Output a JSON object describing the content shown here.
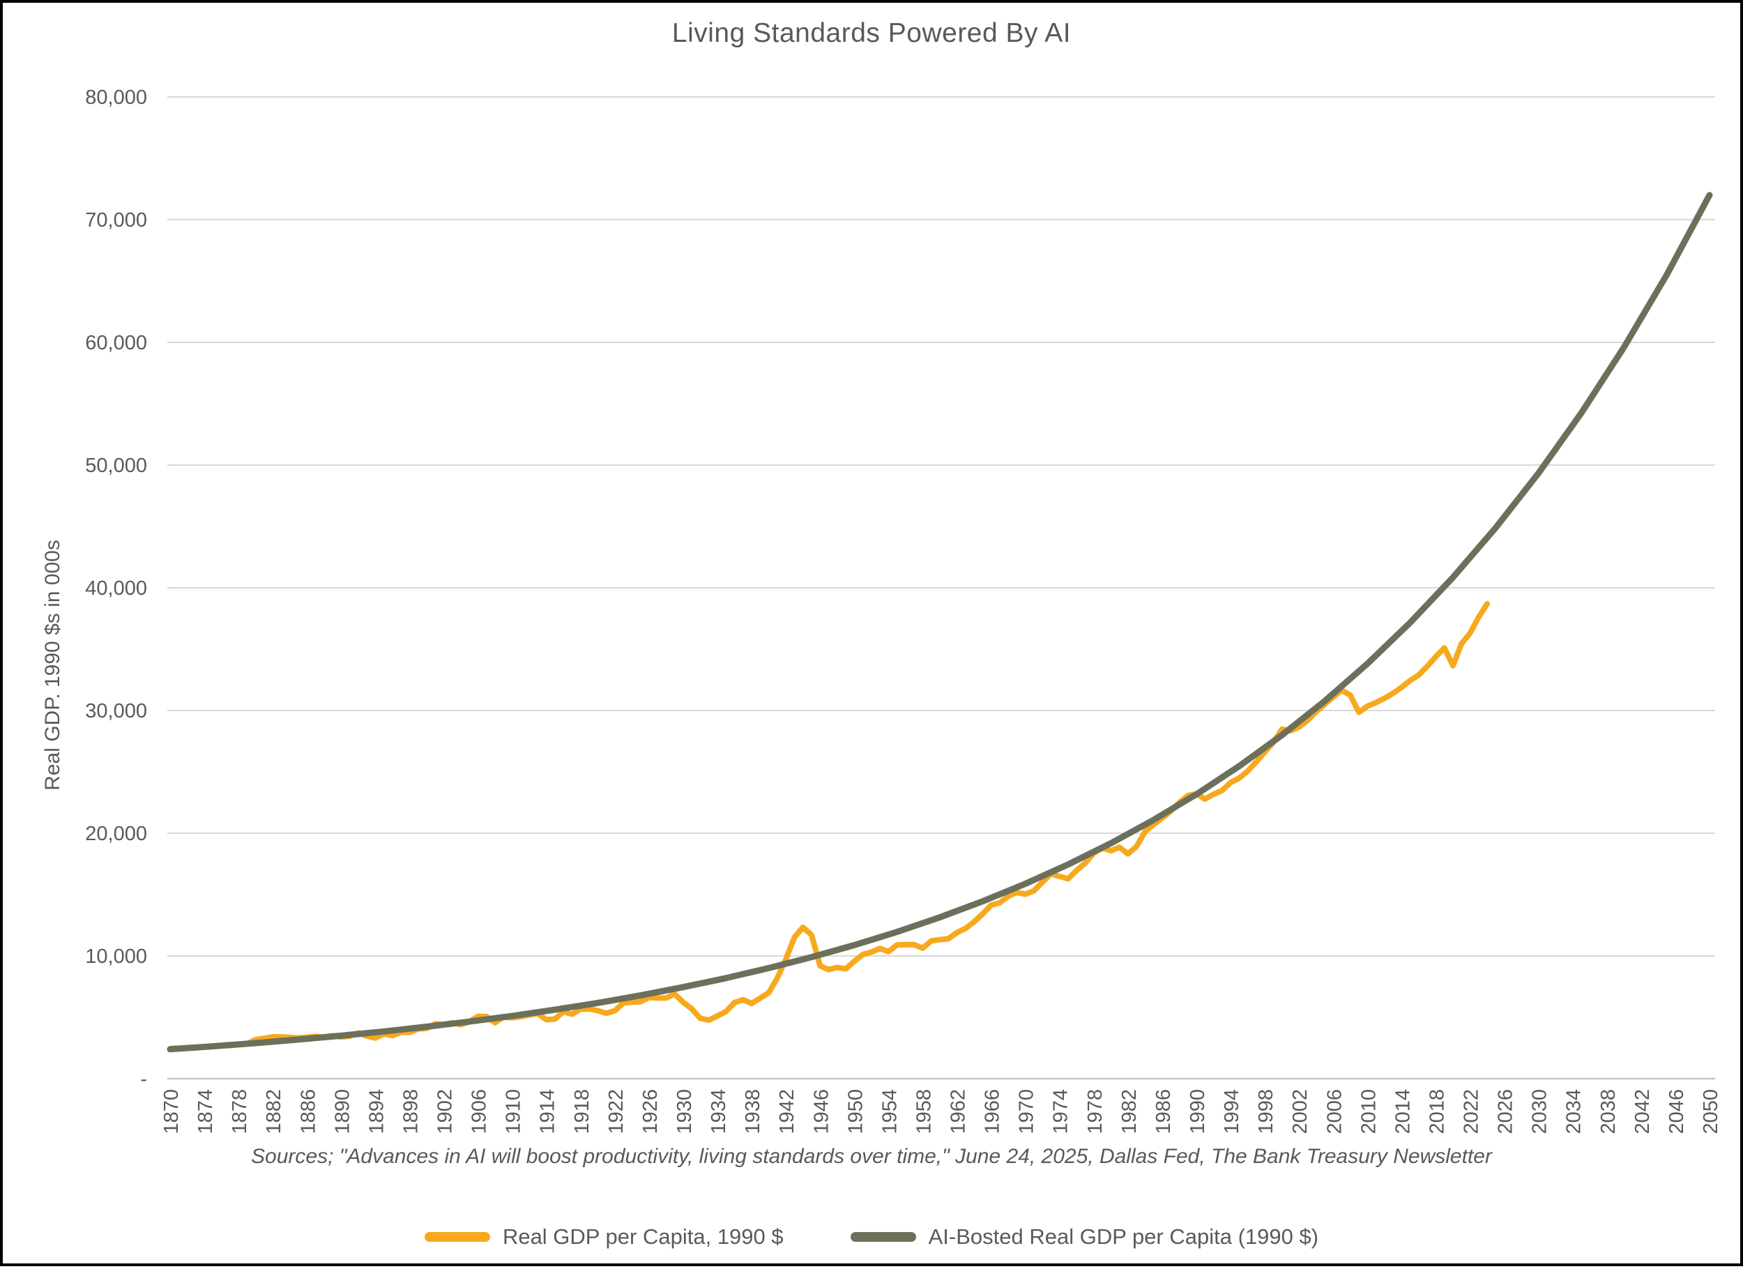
{
  "title": "Living Standards Powered By AI",
  "y_axis": {
    "title": "Real GDP. 1990 $s in 000s",
    "tick_labels": [
      "-",
      "10,000",
      "20,000",
      "30,000",
      "40,000",
      "50,000",
      "60,000",
      "70,000",
      "80,000"
    ]
  },
  "x_axis": {
    "tick_years": [
      1870,
      1874,
      1878,
      1882,
      1886,
      1890,
      1894,
      1898,
      1902,
      1906,
      1910,
      1914,
      1918,
      1922,
      1926,
      1930,
      1934,
      1938,
      1942,
      1946,
      1950,
      1954,
      1958,
      1962,
      1966,
      1970,
      1974,
      1978,
      1982,
      1986,
      1990,
      1994,
      1998,
      2002,
      2006,
      2010,
      2014,
      2018,
      2022,
      2026,
      2030,
      2034,
      2038,
      2042,
      2046,
      2050
    ]
  },
  "source_note": "Sources; \"Advances in AI will boost productivity, living standards over time,\" June 24, 2025, Dallas Fed, The Bank Treasury Newsletter",
  "legend": [
    {
      "label": "Real GDP per Capita, 1990 $",
      "color": "#F7A91D"
    },
    {
      "label": "AI-Bosted Real GDP per Capita (1990 $)",
      "color": "#6C705B"
    }
  ],
  "colors": {
    "text": "#595959",
    "gridline": "#D9D9D9",
    "axis_line": "#C6C6C6",
    "gdp_line": "#F7A91D",
    "ai_line": "#6C705B"
  },
  "chart_data": {
    "type": "line",
    "title": "Living Standards Powered By AI",
    "xlabel": "",
    "ylabel": "Real GDP. 1990 $s in 000s",
    "xlim": [
      1870,
      2050
    ],
    "ylim": [
      0,
      80000
    ],
    "grid": true,
    "legend_position": "bottom",
    "series": [
      {
        "name": "Real GDP per Capita, 1990 $",
        "color": "#F7A91D",
        "x": [
          1870,
          1871,
          1872,
          1873,
          1874,
          1875,
          1876,
          1877,
          1878,
          1879,
          1880,
          1881,
          1882,
          1883,
          1884,
          1885,
          1886,
          1887,
          1888,
          1889,
          1890,
          1891,
          1892,
          1893,
          1894,
          1895,
          1896,
          1897,
          1898,
          1899,
          1900,
          1901,
          1902,
          1903,
          1904,
          1905,
          1906,
          1907,
          1908,
          1909,
          1910,
          1911,
          1912,
          1913,
          1914,
          1915,
          1916,
          1917,
          1918,
          1919,
          1920,
          1921,
          1922,
          1923,
          1924,
          1925,
          1926,
          1927,
          1928,
          1929,
          1930,
          1931,
          1932,
          1933,
          1934,
          1935,
          1936,
          1937,
          1938,
          1939,
          1940,
          1941,
          1942,
          1943,
          1944,
          1945,
          1946,
          1947,
          1948,
          1949,
          1950,
          1951,
          1952,
          1953,
          1954,
          1955,
          1956,
          1957,
          1958,
          1959,
          1960,
          1961,
          1962,
          1963,
          1964,
          1965,
          1966,
          1967,
          1968,
          1969,
          1970,
          1971,
          1972,
          1973,
          1974,
          1975,
          1976,
          1977,
          1978,
          1979,
          1980,
          1981,
          1982,
          1983,
          1984,
          1985,
          1986,
          1987,
          1988,
          1989,
          1990,
          1991,
          1992,
          1993,
          1994,
          1995,
          1996,
          1997,
          1998,
          1999,
          2000,
          2001,
          2002,
          2003,
          2004,
          2005,
          2006,
          2007,
          2008,
          2009,
          2010,
          2011,
          2012,
          2013,
          2014,
          2015,
          2016,
          2017,
          2018,
          2019,
          2020,
          2021,
          2022,
          2023,
          2024
        ],
        "values": [
          2445,
          2490,
          2525,
          2560,
          2600,
          2645,
          2685,
          2730,
          2780,
          2830,
          3185,
          3285,
          3410,
          3405,
          3365,
          3320,
          3375,
          3445,
          3370,
          3500,
          3390,
          3465,
          3730,
          3480,
          3315,
          3645,
          3505,
          3770,
          3780,
          4050,
          4090,
          4465,
          4420,
          4550,
          4410,
          4640,
          5080,
          5065,
          4560,
          5015,
          4965,
          5045,
          5200,
          5300,
          4800,
          4865,
          5460,
          5250,
          5660,
          5680,
          5550,
          5325,
          5540,
          6165,
          6235,
          6280,
          6600,
          6575,
          6570,
          6900,
          6215,
          5690,
          4910,
          4775,
          5115,
          5465,
          6205,
          6430,
          6125,
          6560,
          7010,
          8205,
          9740,
          11520,
          12335,
          11710,
          9195,
          8885,
          9065,
          8945,
          9560,
          10115,
          10315,
          10615,
          10360,
          10895,
          10915,
          10920,
          10630,
          11230,
          11330,
          11400,
          11905,
          12240,
          12775,
          13420,
          14135,
          14330,
          14865,
          15180,
          15030,
          15305,
          16010,
          16690,
          16490,
          16285,
          16975,
          17565,
          18375,
          18790,
          18575,
          18855,
          18325,
          18920,
          20125,
          20715,
          21235,
          21790,
          22500,
          23060,
          23200,
          22785,
          23170,
          23475,
          24130,
          24485,
          25065,
          25820,
          26620,
          27395,
          28470,
          28350,
          28650,
          29200,
          29900,
          30500,
          31100,
          31650,
          31250,
          29850,
          30350,
          30650,
          31000,
          31400,
          31900,
          32450,
          32900,
          33600,
          34400,
          35100,
          33650,
          35450,
          36300,
          37600,
          38700
        ]
      },
      {
        "name": "AI-Bosted Real GDP per Capita (1990 $)",
        "color": "#6C705B",
        "x": [
          1870,
          1875,
          1880,
          1885,
          1890,
          1895,
          1900,
          1905,
          1910,
          1915,
          1920,
          1925,
          1930,
          1935,
          1940,
          1945,
          1950,
          1955,
          1960,
          1965,
          1970,
          1975,
          1980,
          1985,
          1990,
          1995,
          2000,
          2005,
          2010,
          2015,
          2020,
          2025,
          2030,
          2035,
          2040,
          2045,
          2050
        ],
        "values": [
          2400,
          2638,
          2899,
          3186,
          3502,
          3849,
          4231,
          4650,
          5110,
          5617,
          6173,
          6785,
          7458,
          8196,
          9009,
          9901,
          10882,
          11960,
          13146,
          14448,
          15880,
          17453,
          19182,
          21083,
          23172,
          25468,
          27992,
          30765,
          33814,
          37164,
          40847,
          44894,
          49342,
          54231,
          59605,
          65510,
          72000
        ]
      }
    ]
  }
}
